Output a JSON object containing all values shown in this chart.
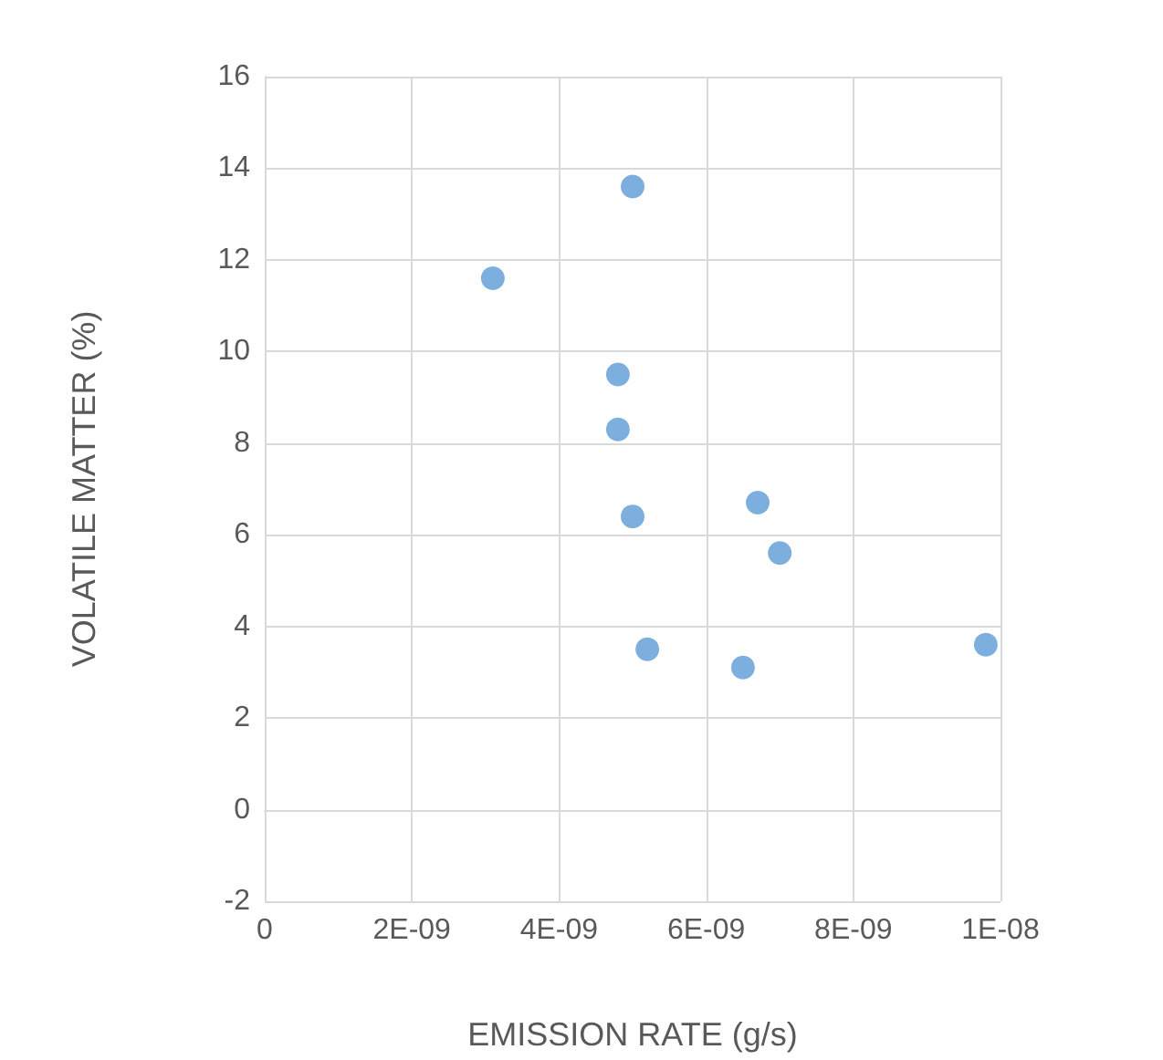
{
  "chart_data": {
    "type": "scatter",
    "xlabel": "EMISSION RATE (g/s)",
    "ylabel": "VOLATILE MATTER (%)",
    "x": [
      3.1e-09,
      5e-09,
      4.8e-09,
      4.8e-09,
      5e-09,
      6.7e-09,
      7e-09,
      5.2e-09,
      6.5e-09,
      9.8e-09
    ],
    "values": [
      11.6,
      13.6,
      9.5,
      8.3,
      6.4,
      6.7,
      5.6,
      3.5,
      3.1,
      3.6
    ],
    "color": "#5b9bd5",
    "marker": "circle",
    "xlim": [
      0,
      1e-08
    ],
    "xticks": [
      0,
      {
        "value": 2e-09,
        "label": "2E-09"
      },
      {
        "value": 4e-09,
        "label": "4E-09"
      },
      {
        "value": 6e-09,
        "label": "6E-09"
      },
      {
        "value": 8e-09,
        "label": "8E-09"
      },
      {
        "value": 1e-08,
        "label": "1E-08"
      }
    ],
    "ylim": [
      -2,
      16
    ],
    "yticks": [
      -2,
      0,
      2,
      4,
      6,
      8,
      10,
      12,
      14,
      16
    ],
    "grid": true
  }
}
